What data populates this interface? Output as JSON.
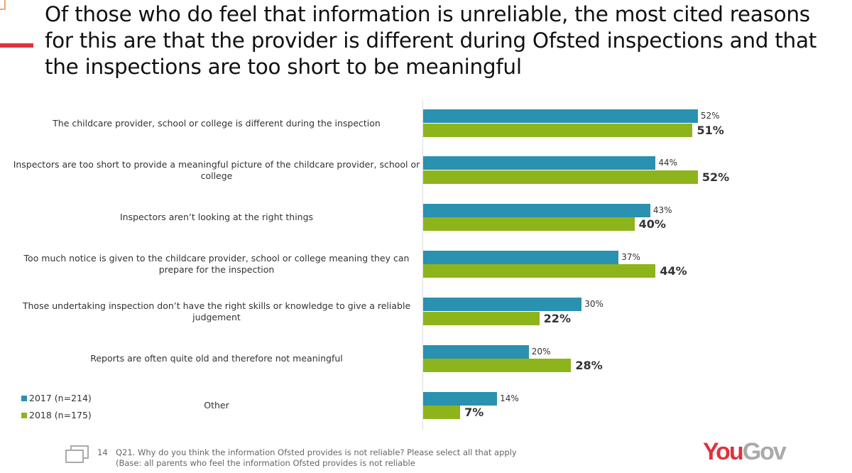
{
  "title": "Of those who do feel that information is unreliable, the most cited reasons for this are that the provider is different during Ofsted inspections and that the inspections are too short to be meaningful",
  "chart_data": {
    "type": "bar",
    "orientation": "horizontal",
    "categories": [
      "The childcare provider, school or college is different during the inspection",
      "Inspectors are too short to provide a meaningful picture of the childcare provider, school or college",
      "Inspectors aren’t looking at the right things",
      "Too much notice is given to the childcare provider, school or college meaning they can prepare for the inspection",
      "Those undertaking inspection don’t have the right skills or knowledge to give a reliable judgement",
      "Reports are often quite old and therefore not meaningful",
      "Other"
    ],
    "series": [
      {
        "name": "2017 (n=214)",
        "color": "#2a91b0",
        "values": [
          52,
          44,
          43,
          37,
          30,
          20,
          14
        ]
      },
      {
        "name": "2018 (n=175)",
        "color": "#8db51b",
        "values": [
          51,
          52,
          40,
          44,
          22,
          28,
          7
        ]
      }
    ],
    "value_format": "%",
    "xlim": [
      0,
      100
    ],
    "legend": "bottom-left",
    "grid": false
  },
  "footer": {
    "page": "14",
    "question": "Q21. Why do you think the information Ofsted provides is not reliable? Please select all that apply",
    "base": "(Base: all parents who feel the information Ofsted provides is not reliable"
  },
  "logo": {
    "you": "You",
    "gov": "Gov"
  },
  "icons": {
    "footer": "slides-icon"
  }
}
